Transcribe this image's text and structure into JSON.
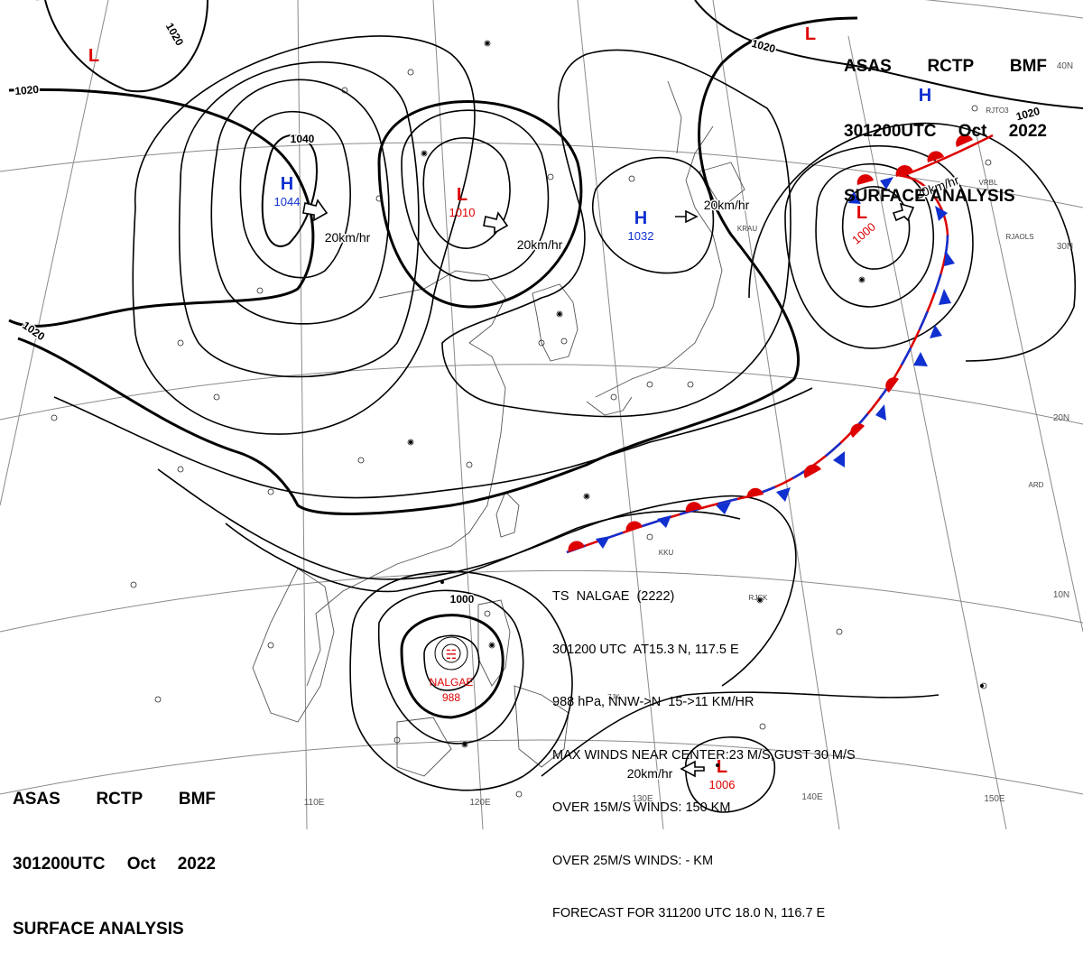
{
  "header_top": {
    "line1": [
      "ASAS",
      "RCTP",
      "BMF"
    ],
    "line2": [
      "301200UTC",
      "Oct",
      "2022"
    ],
    "line3": "SURFACE ANALYSIS"
  },
  "header_bottom": {
    "line1": [
      "ASAS",
      "RCTP",
      "BMF"
    ],
    "line2": [
      "301200UTC",
      "Oct",
      "2022"
    ],
    "line3": "SURFACE ANALYSIS"
  },
  "typhoon_info": [
    "TS  NALGAE  (2222)",
    "301200 UTC  AT15.3 N, 117.5 E",
    "988 hPa, NNW->N  15->11 KM/HR",
    "MAX WINDS NEAR CENTER:23 M/S,GUST 30 M/S",
    "OVER 15M/S WINDS: 150 KM",
    "OVER 25M/S WINDS: - KM",
    "FORECAST FOR 311200 UTC 18.0 N, 116.7 E"
  ],
  "isobar_labels": [
    "1020",
    "1020",
    "1020",
    "1020",
    "1020",
    "1040",
    "1000"
  ],
  "pressure_centers": [
    {
      "type": "L",
      "value": "",
      "color": "#dd0000"
    },
    {
      "type": "L",
      "value": "",
      "color": "#dd0000"
    },
    {
      "type": "H",
      "value": "",
      "color": "#1030d0"
    },
    {
      "type": "H",
      "value": "1044",
      "color": "#1030d0"
    },
    {
      "type": "L",
      "value": "1010",
      "color": "#dd0000"
    },
    {
      "type": "H",
      "value": "1032",
      "color": "#1030d0"
    },
    {
      "type": "L",
      "value": "1000",
      "color": "#dd0000"
    },
    {
      "type": "L",
      "value": "1006",
      "color": "#dd0000"
    }
  ],
  "typhoon_center": {
    "name": "NALGAE",
    "pressure": "988",
    "color": "#dd0000"
  },
  "motion_labels": [
    "20km/hr",
    "20km/hr",
    "20km/hr",
    "20km/hr",
    "20km/hr"
  ],
  "lat_labels": [
    "40N",
    "30N",
    "20N",
    "10N"
  ],
  "lon_labels": [
    "110E",
    "120E",
    "130E",
    "140E",
    "150E"
  ],
  "station_codes": [
    "VRBL",
    "RJAOLS",
    "7JK",
    "KKU",
    "KRAU",
    "RJCK",
    "ARD",
    "RJTO3"
  ],
  "colors": {
    "cold_front": "#1030d0",
    "warm_front": "#dd0000",
    "isobar": "#000000",
    "coast": "#555555",
    "grid": "#8a8a8a"
  }
}
